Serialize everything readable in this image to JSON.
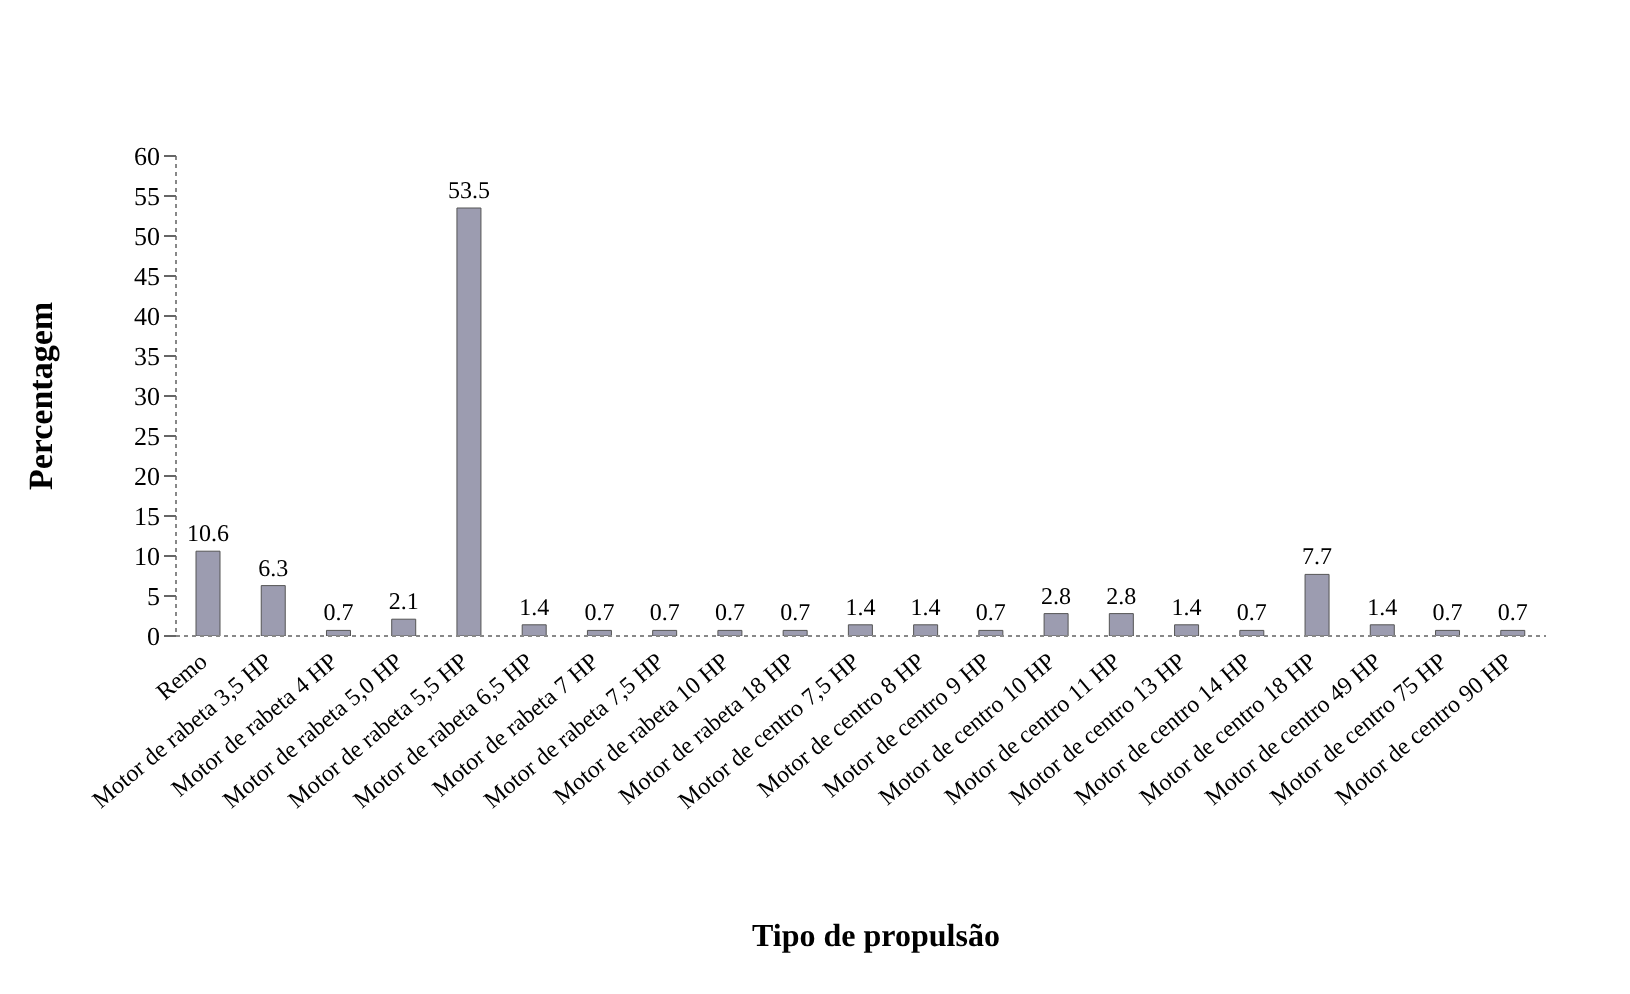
{
  "chart_data": {
    "type": "bar",
    "xlabel": "Tipo de propulsão",
    "ylabel": "Percentagem",
    "categories": [
      "Remo",
      "Motor de rabeta 3,5 HP",
      "Motor de rabeta 4 HP",
      "Motor de rabeta 5,0 HP",
      "Motor de rabeta 5,5 HP",
      "Motor de rabeta 6,5 HP",
      "Motor de rabeta 7 HP",
      "Motor de rabeta 7,5 HP",
      "Motor de rabeta 10 HP",
      "Motor de rabeta 18 HP",
      "Motor de centro 7,5 HP",
      "Motor de centro 8 HP",
      "Motor de centro 9 HP",
      "Motor de centro 10 HP",
      "Motor de centro 11 HP",
      "Motor de centro 13 HP",
      "Motor de centro 14 HP",
      "Motor de centro 18 HP",
      "Motor de centro 49 HP",
      "Motor de centro 75 HP",
      "Motor de centro 90 HP"
    ],
    "values": [
      10.6,
      6.3,
      0.7,
      2.1,
      53.5,
      1.4,
      0.7,
      0.7,
      0.7,
      0.7,
      1.4,
      1.4,
      0.7,
      2.8,
      2.8,
      1.4,
      0.7,
      7.7,
      1.4,
      0.7,
      0.7
    ],
    "color": "#9c9cb0",
    "ylim": [
      0,
      60
    ],
    "yticks": [
      0,
      5,
      10,
      15,
      20,
      25,
      30,
      35,
      40,
      45,
      50,
      55,
      60
    ],
    "data_labels": true
  }
}
